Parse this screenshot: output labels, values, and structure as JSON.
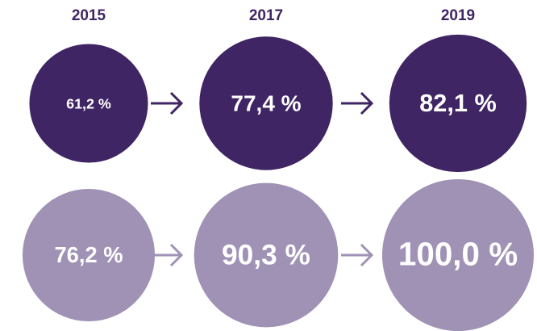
{
  "chart_data": {
    "type": "bubble",
    "categories": [
      "2015",
      "2017",
      "2019"
    ],
    "series": [
      {
        "color": "#3f2563",
        "values": [
          61.2,
          77.4,
          82.1
        ],
        "value_labels": [
          "61,2 %",
          "77,4 %",
          "82,1 %"
        ]
      },
      {
        "color": "#9f92b5",
        "values": [
          76.2,
          90.3,
          100.0
        ],
        "value_labels": [
          "76,2 %",
          "90,3 %",
          "100,0 %"
        ]
      }
    ]
  }
}
